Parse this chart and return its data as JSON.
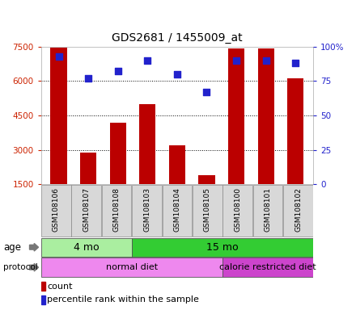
{
  "title": "GDS2681 / 1455009_at",
  "samples": [
    "GSM108106",
    "GSM108107",
    "GSM108108",
    "GSM108103",
    "GSM108104",
    "GSM108105",
    "GSM108100",
    "GSM108101",
    "GSM108102"
  ],
  "counts": [
    7450,
    2900,
    4200,
    5000,
    3200,
    1900,
    7400,
    7400,
    6100
  ],
  "percentile_ranks": [
    93,
    77,
    82,
    90,
    80,
    67,
    90,
    90,
    88
  ],
  "ylim_left": [
    1500,
    7500
  ],
  "ylim_right": [
    0,
    100
  ],
  "yticks_left": [
    1500,
    3000,
    4500,
    6000,
    7500
  ],
  "yticks_right": [
    0,
    25,
    50,
    75,
    100
  ],
  "bar_color": "#bb0000",
  "dot_color": "#2222cc",
  "age_groups": [
    {
      "label": "4 mo",
      "start": 0,
      "end": 3,
      "color": "#aaeea0"
    },
    {
      "label": "15 mo",
      "start": 3,
      "end": 9,
      "color": "#33cc33"
    }
  ],
  "protocol_groups": [
    {
      "label": "normal diet",
      "start": 0,
      "end": 6,
      "color": "#ee88ee"
    },
    {
      "label": "calorie restricted diet",
      "start": 6,
      "end": 9,
      "color": "#cc44cc"
    }
  ],
  "legend_count_color": "#bb0000",
  "legend_dot_color": "#2222cc",
  "grid_color": "#000000",
  "tick_color_left": "#cc2200",
  "tick_color_right": "#2222cc",
  "background_color": "#ffffff",
  "plot_bg_color": "#ffffff",
  "bar_width": 0.55
}
